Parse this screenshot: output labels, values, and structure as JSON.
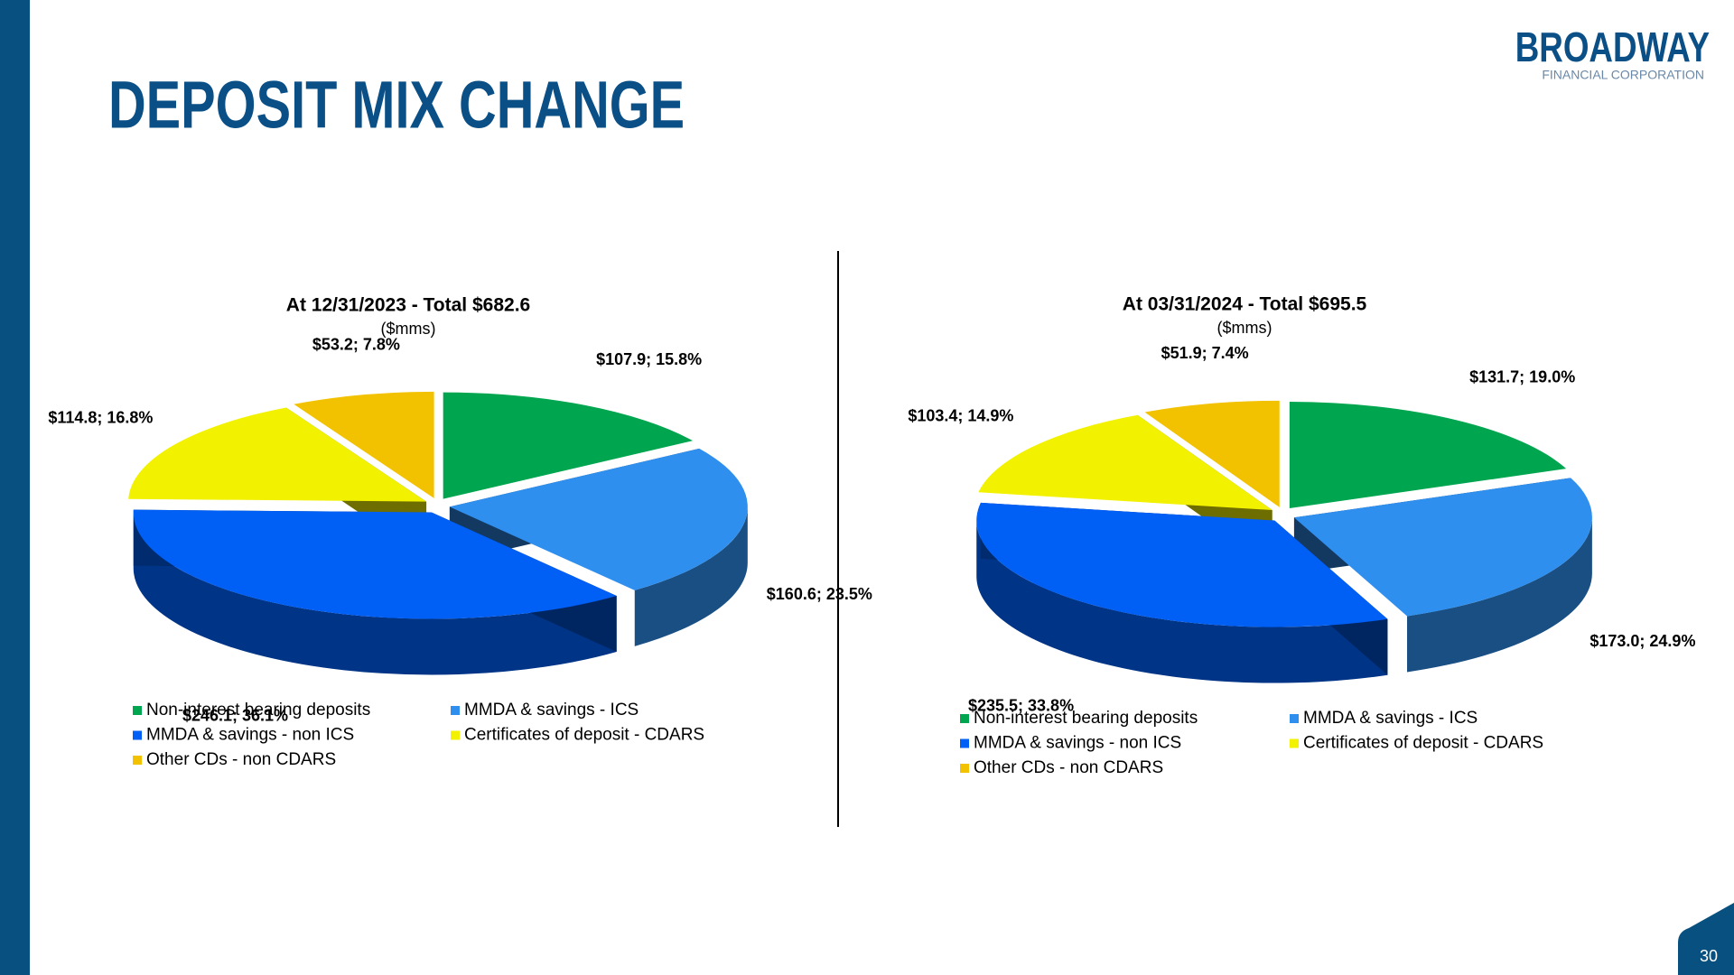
{
  "slide": {
    "title": "DEPOSIT MIX CHANGE",
    "logo": "BROADWAY",
    "logo_subtitle": "FINANCIAL CORPORATION",
    "page_number": "30"
  },
  "chart_data": [
    {
      "type": "pie",
      "title": "At 12/31/2023 - Total $682.6",
      "subtitle": "($mms)",
      "categories": [
        "Non-interest bearing deposits",
        "MMDA & savings - ICS",
        "MMDA & savings - non ICS",
        "Certificates of deposit - CDARS",
        "Other CDs - non CDARS"
      ],
      "values": [
        107.9,
        160.6,
        246.1,
        114.8,
        53.2
      ],
      "value_labels": [
        "$107.9; 15.8%",
        "$160.6; 23.5%",
        "$246.1; 36.1%",
        "$114.8; 16.8%",
        "$53.2; 7.8%"
      ],
      "colors": [
        "#00a64f",
        "#2f8fef",
        "#005ff5",
        "#f2f200",
        "#f2c200"
      ]
    },
    {
      "type": "pie",
      "title": "At 03/31/2024 - Total $695.5",
      "subtitle": "($mms)",
      "categories": [
        "Non-interest bearing deposits",
        "MMDA & savings - ICS",
        "MMDA & savings - non ICS",
        "Certificates of deposit - CDARS",
        "Other CDs - non CDARS"
      ],
      "values": [
        131.7,
        173.0,
        235.5,
        103.4,
        51.9
      ],
      "value_labels": [
        "$131.7; 19.0%",
        "$173.0; 24.9%",
        "$235.5; 33.8%",
        "$103.4; 14.9%",
        "$51.9; 7.4%"
      ],
      "colors": [
        "#00a64f",
        "#2f8fef",
        "#005ff5",
        "#f2f200",
        "#f2c200"
      ]
    }
  ]
}
